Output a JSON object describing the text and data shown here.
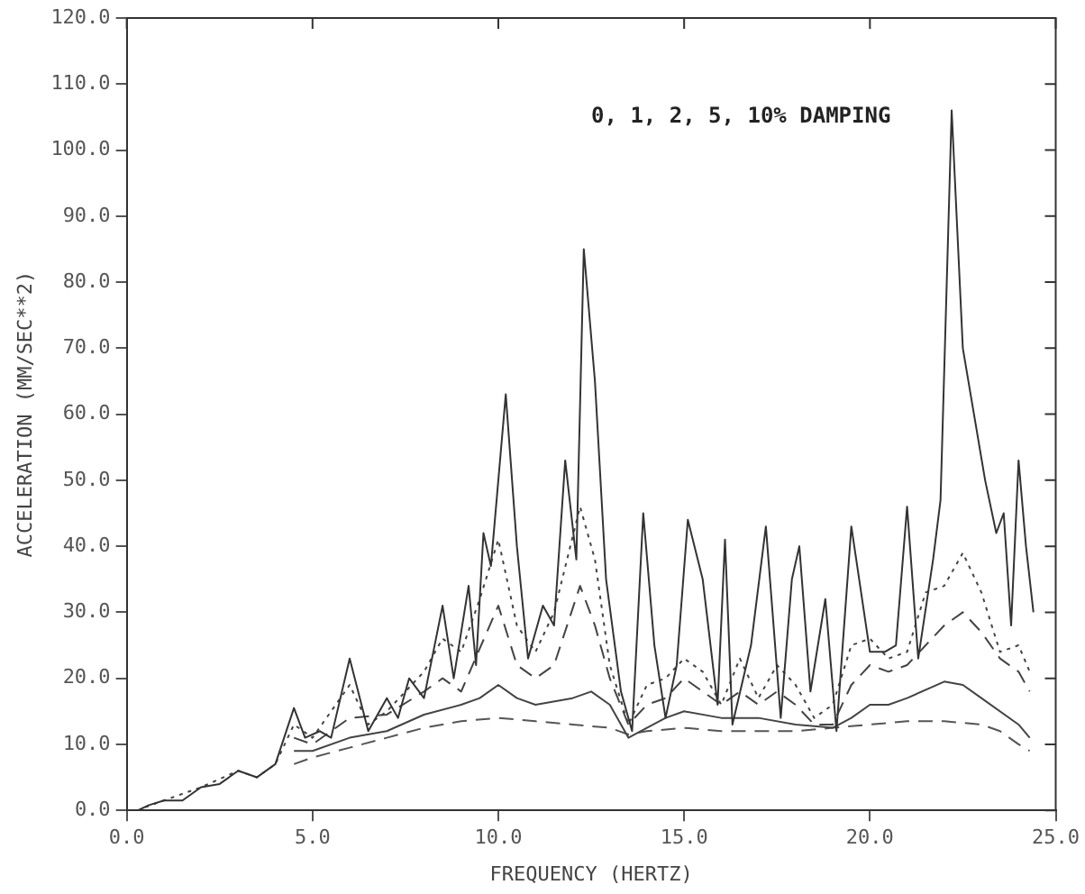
{
  "chart_data": {
    "type": "line",
    "xlabel": "FREQUENCY (HERTZ)",
    "ylabel": "ACCELERATION (MM/SEC**2)",
    "annotations": [
      "0, 1, 2, 5, 10% DAMPING"
    ],
    "xlim": [
      0,
      25
    ],
    "xticks": [
      {
        "value": 0,
        "label": "0.0"
      },
      {
        "value": 5,
        "label": "5.0"
      },
      {
        "value": 10,
        "label": "10.0"
      },
      {
        "value": 15,
        "label": "15.0"
      },
      {
        "value": 20,
        "label": "20.0"
      },
      {
        "value": 25,
        "label": "25.0"
      }
    ],
    "ylim": [
      0,
      120
    ],
    "yticks": [
      {
        "value": 0,
        "label": "0.0"
      },
      {
        "value": 10,
        "label": "10.0"
      },
      {
        "value": 20,
        "label": "20.0"
      },
      {
        "value": 30,
        "label": "30.0"
      },
      {
        "value": 40,
        "label": "40.0"
      },
      {
        "value": 50,
        "label": "50.0"
      },
      {
        "value": 60,
        "label": "60.0"
      },
      {
        "value": 70,
        "label": "70.0"
      },
      {
        "value": 80,
        "label": "80.0"
      },
      {
        "value": 90,
        "label": "90.0"
      },
      {
        "value": 100,
        "label": "100.0"
      },
      {
        "value": 110,
        "label": "110.0"
      },
      {
        "value": 120,
        "label": "120.0"
      }
    ],
    "grid": false,
    "legend": false,
    "marker": "none",
    "series": [
      {
        "color": "#333333",
        "line_style": "solid",
        "x": [
          0.3,
          0.6,
          1,
          1.5,
          2,
          2.5,
          3,
          3.5,
          4,
          4.5,
          4.8,
          5.2,
          5.5,
          6,
          6.5,
          7,
          7.3,
          7.6,
          8,
          8.5,
          8.8,
          9.2,
          9.4,
          9.6,
          9.8,
          10.2,
          10.5,
          10.8,
          11.2,
          11.5,
          11.8,
          12.1,
          12.3,
          12.6,
          12.9,
          13.3,
          13.6,
          13.9,
          14.2,
          14.5,
          14.8,
          15.1,
          15.5,
          15.9,
          16.1,
          16.3,
          16.8,
          17.2,
          17.6,
          17.9,
          18.1,
          18.4,
          18.8,
          19.1,
          19.5,
          20,
          20.4,
          20.7,
          21,
          21.3,
          21.7,
          21.9,
          22.2,
          22.5,
          22.8,
          23.1,
          23.4,
          23.6,
          23.8,
          24,
          24.2,
          24.4
        ],
        "values": [
          0,
          0.8,
          1.5,
          1.5,
          3.5,
          4,
          6,
          5,
          7,
          15.5,
          11,
          12,
          11,
          23,
          12,
          17,
          14,
          20,
          17,
          31,
          20,
          34,
          22,
          42,
          37,
          63,
          40,
          23,
          31,
          28,
          53,
          38,
          85,
          65,
          35,
          18,
          12,
          45,
          25,
          14,
          22,
          44,
          35,
          16,
          41,
          13,
          25,
          43,
          14,
          35,
          40,
          18,
          32,
          12,
          43,
          24,
          24,
          25,
          46,
          23,
          38,
          47,
          106,
          70,
          60,
          50,
          42,
          45,
          28,
          53,
          40,
          30
        ]
      },
      {
        "color": "#444444",
        "line_style": "dotted",
        "x": [
          0.5,
          1,
          2,
          3,
          3.5,
          4,
          4.5,
          5,
          6,
          6.5,
          7,
          8,
          8.5,
          9,
          9.5,
          10,
          10.5,
          11,
          11.5,
          12.2,
          12.6,
          13,
          13.5,
          14,
          14.5,
          15,
          15.5,
          16,
          16.5,
          17,
          17.5,
          18,
          18.5,
          19,
          19.5,
          20,
          20.5,
          21,
          21.5,
          22,
          22.5,
          23,
          23.5,
          24,
          24.3
        ],
        "values": [
          0.5,
          1.5,
          3.5,
          6,
          5,
          7,
          13,
          11,
          19,
          13,
          15,
          21,
          26,
          24,
          32,
          41,
          28,
          24,
          30,
          46,
          38,
          22,
          13,
          19,
          20,
          23,
          21,
          16,
          23,
          17,
          22,
          19,
          14,
          16,
          25,
          26,
          23,
          24,
          33,
          34,
          39,
          33,
          24,
          25,
          21
        ]
      },
      {
        "color": "#444444",
        "line_style": "dashed",
        "x": [
          4.5,
          5,
          6,
          7,
          8,
          8.5,
          9,
          10,
          10.5,
          11,
          11.5,
          12.2,
          12.6,
          13,
          13.5,
          14,
          14.5,
          15,
          15.5,
          16,
          16.5,
          17,
          17.5,
          18,
          18.5,
          19,
          19.5,
          20,
          20.5,
          21,
          21.5,
          22,
          22.5,
          23,
          23.5,
          24,
          24.3
        ],
        "values": [
          11,
          10,
          14,
          14.5,
          18,
          20,
          18,
          31,
          22,
          20,
          22,
          34,
          28,
          20,
          13,
          16,
          17,
          20,
          18,
          16,
          18,
          16,
          18,
          16,
          13,
          13,
          19,
          22,
          21,
          22,
          25,
          28,
          30,
          27,
          23,
          21,
          18
        ]
      },
      {
        "color": "#444444",
        "line_style": "solid",
        "x": [
          4.5,
          5,
          6,
          7,
          8,
          9,
          9.5,
          10,
          10.5,
          11,
          12,
          12.5,
          13,
          13.5,
          14,
          14.5,
          15,
          16,
          17,
          18,
          19,
          19.5,
          20,
          20.5,
          21,
          22,
          22.5,
          23,
          24,
          24.3
        ],
        "values": [
          9,
          9,
          11,
          12,
          14.5,
          16,
          17,
          19,
          17,
          16,
          17,
          18,
          16,
          11,
          12.5,
          14,
          15,
          14,
          14,
          13,
          12.5,
          14,
          16,
          16,
          17,
          19.5,
          19,
          17,
          13,
          11
        ]
      },
      {
        "color": "#555555",
        "line_style": "dashed",
        "x": [
          4.5,
          5,
          6,
          7,
          8,
          9,
          10,
          11,
          12,
          13,
          13.5,
          14,
          15,
          16,
          17,
          18,
          19,
          20,
          21,
          22,
          23,
          23.5,
          24,
          24.3
        ],
        "values": [
          7,
          8,
          9.5,
          11,
          12.5,
          13.5,
          14,
          13.5,
          13,
          12.5,
          11.5,
          12,
          12.5,
          12,
          12,
          12,
          12.5,
          13,
          13.5,
          13.5,
          13,
          12,
          10,
          9
        ]
      }
    ]
  }
}
